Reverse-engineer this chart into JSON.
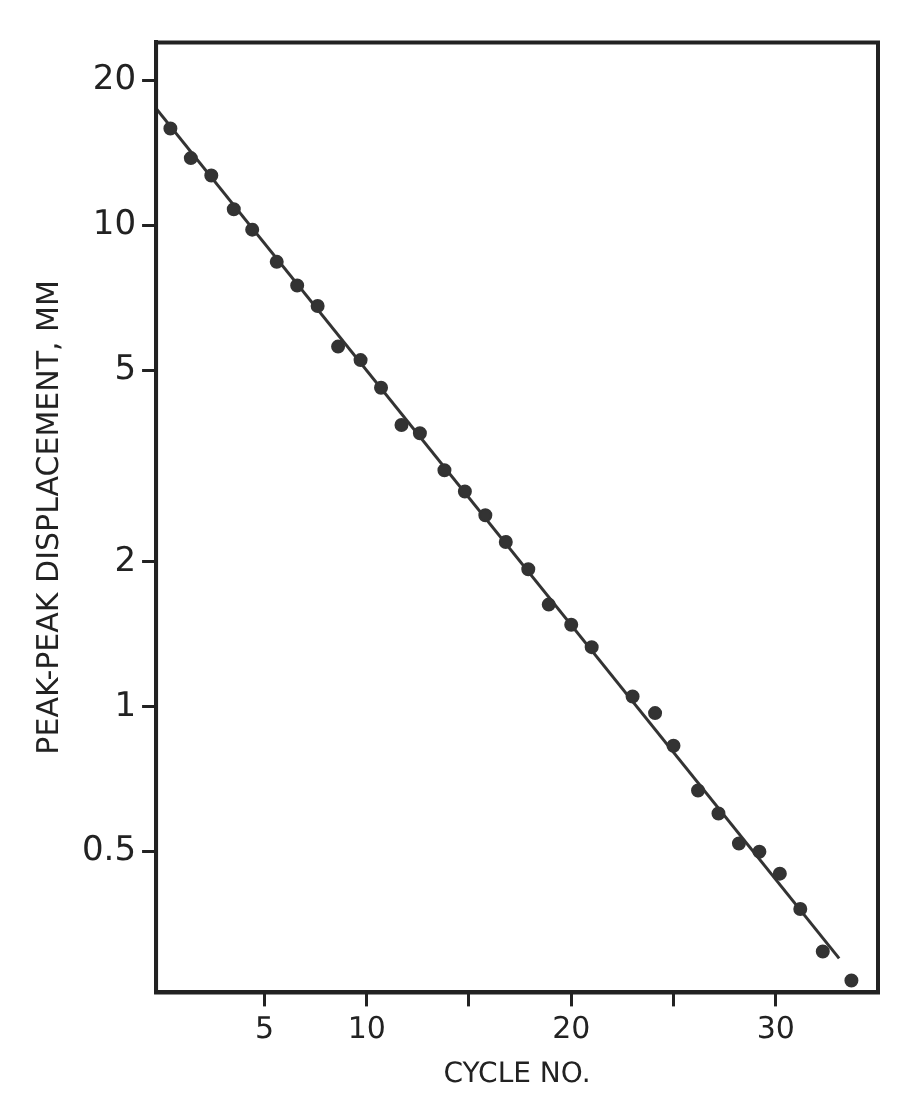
{
  "chart_data": {
    "type": "scatter",
    "xlabel": "CYCLE NO.",
    "ylabel": "PEAK-PEAK DISPLACEMENT, MM",
    "log": "y",
    "xlim": [
      -0.3,
      35
    ],
    "ylim": [
      0.255,
      24
    ],
    "xticks": [
      5,
      10,
      {
        "value": 15,
        "label": null
      },
      20,
      {
        "value": 25,
        "label": null
      },
      30
    ],
    "yticks": [
      0.5,
      1,
      2,
      5,
      10,
      20
    ],
    "marker": "circle",
    "legend": false,
    "series": [
      {
        "color": "#333333",
        "x": [
          0.4,
          1.4,
          2.4,
          3.5,
          4.4,
          5.6,
          6.6,
          7.6,
          8.6,
          9.7,
          10.7,
          11.7,
          12.6,
          13.8,
          14.8,
          15.8,
          16.8,
          17.9,
          18.9,
          20,
          21,
          23,
          24.1,
          25,
          26.2,
          27.2,
          28.2,
          29.2,
          30.2,
          31.2,
          32.3,
          33.7
        ],
        "values": [
          15.9,
          13.8,
          12.7,
          10.8,
          9.8,
          8.4,
          7.5,
          6.8,
          5.6,
          5.25,
          4.6,
          3.85,
          3.7,
          3.1,
          2.8,
          2.5,
          2.2,
          1.93,
          1.63,
          1.48,
          1.33,
          1.05,
          0.97,
          0.83,
          0.67,
          0.6,
          0.52,
          0.5,
          0.45,
          0.38,
          0.31,
          0.27
        ]
      },
      {
        "type": "line",
        "color": "#333333",
        "marker": "none",
        "line_style": "solid",
        "x": [
          -0.3,
          33.1
        ],
        "values": [
          17.5,
          0.3
        ]
      }
    ]
  }
}
